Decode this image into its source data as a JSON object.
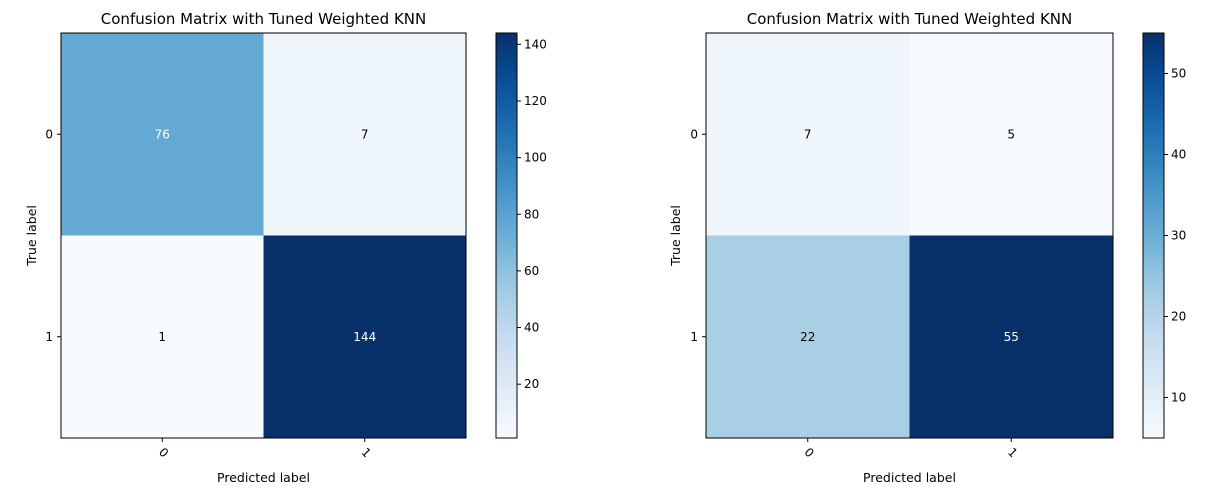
{
  "chart_data": [
    {
      "type": "heatmap",
      "title": "Confusion Matrix with Tuned Weighted KNN",
      "xlabel": "Predicted label",
      "ylabel": "True label",
      "x_tick_labels": [
        "0",
        "1"
      ],
      "y_tick_labels": [
        "0",
        "1"
      ],
      "matrix": [
        [
          76,
          7
        ],
        [
          1,
          144
        ]
      ],
      "colormap": "Blues",
      "colorbar": {
        "min": 1,
        "max": 144,
        "ticks": [
          20,
          40,
          60,
          80,
          100,
          120,
          140
        ]
      }
    },
    {
      "type": "heatmap",
      "title": "Confusion Matrix with Tuned Weighted KNN",
      "xlabel": "Predicted label",
      "ylabel": "True label",
      "x_tick_labels": [
        "0",
        "1"
      ],
      "y_tick_labels": [
        "0",
        "1"
      ],
      "matrix": [
        [
          7,
          5
        ],
        [
          22,
          55
        ]
      ],
      "colormap": "Blues",
      "colorbar": {
        "min": 5,
        "max": 55,
        "ticks": [
          10,
          20,
          30,
          40,
          50
        ]
      }
    }
  ]
}
